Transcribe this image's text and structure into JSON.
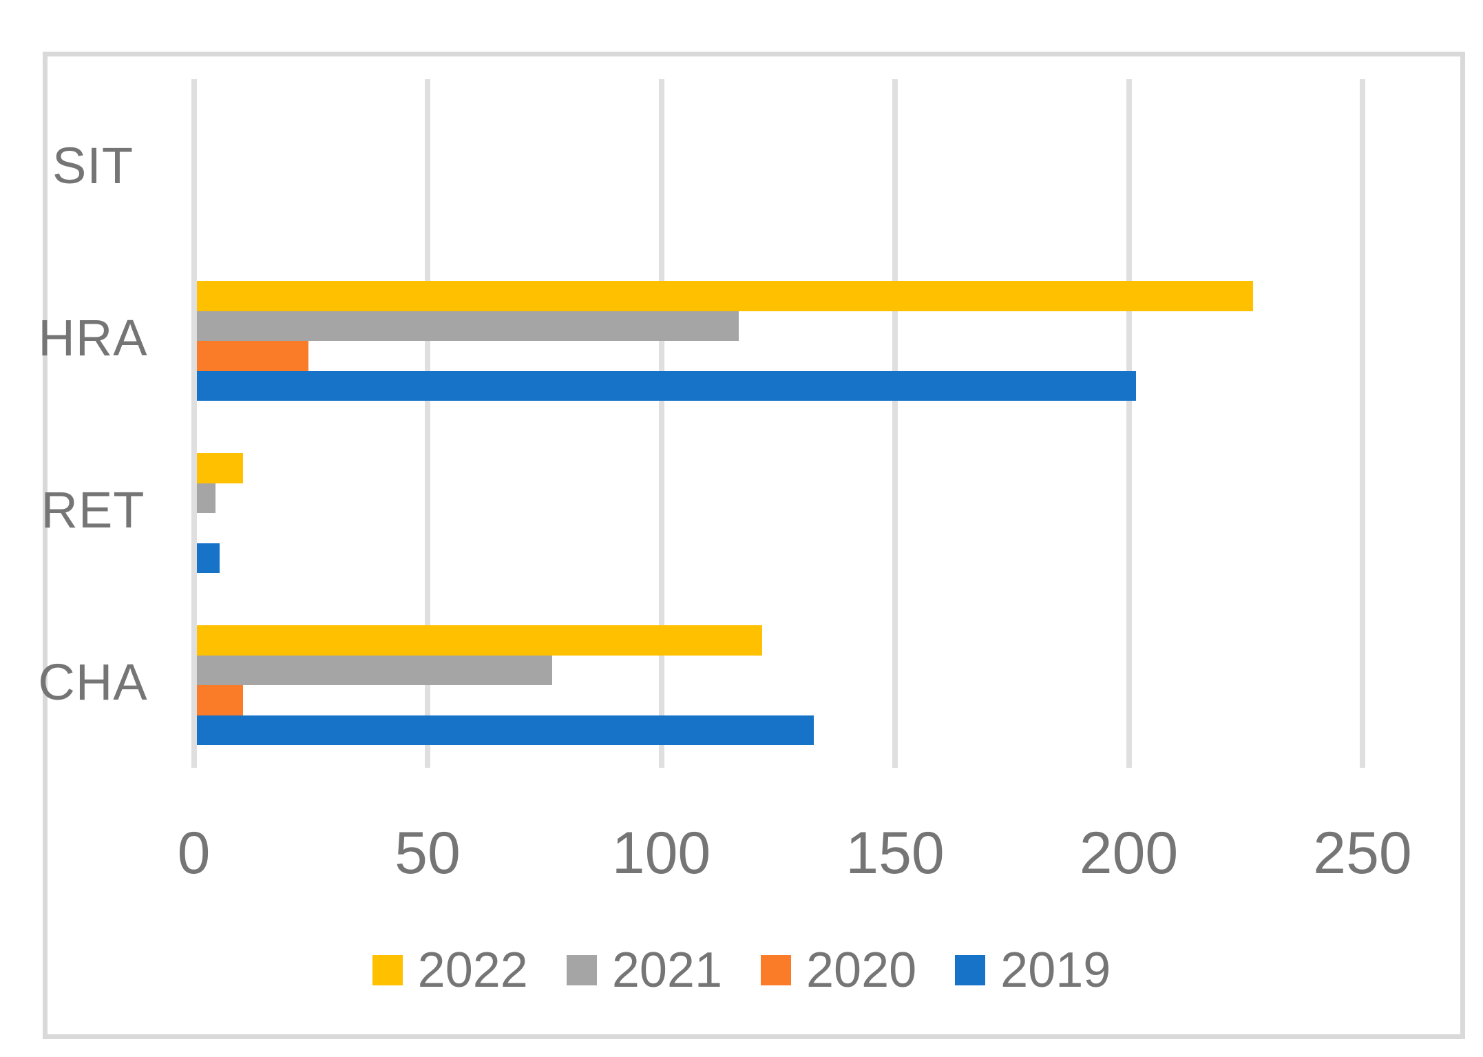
{
  "chart_data": {
    "type": "bar",
    "orientation": "horizontal",
    "title": "",
    "xlabel": "",
    "ylabel": "",
    "categories": [
      "SIT",
      "HRA",
      "RET",
      "CHA"
    ],
    "series": [
      {
        "name": "2022",
        "color": "#FFC000",
        "values": [
          0,
          226,
          10,
          121
        ]
      },
      {
        "name": "2021",
        "color": "#A5A5A5",
        "values": [
          0,
          116,
          4,
          76
        ]
      },
      {
        "name": "2020",
        "color": "#FB7C28",
        "values": [
          0,
          24,
          0,
          10
        ]
      },
      {
        "name": "2019",
        "color": "#1773C8",
        "values": [
          0,
          201,
          5,
          132
        ]
      }
    ],
    "xlim": [
      0,
      250
    ],
    "xticks": [
      "0",
      "50",
      "100",
      "150",
      "200",
      "250"
    ],
    "grid": true,
    "legend_position": "bottom",
    "colors": {
      "gridline": "#DFDFDF",
      "border": "#D9D9D9",
      "text": "#757575",
      "background": "#FFFFFF"
    }
  }
}
